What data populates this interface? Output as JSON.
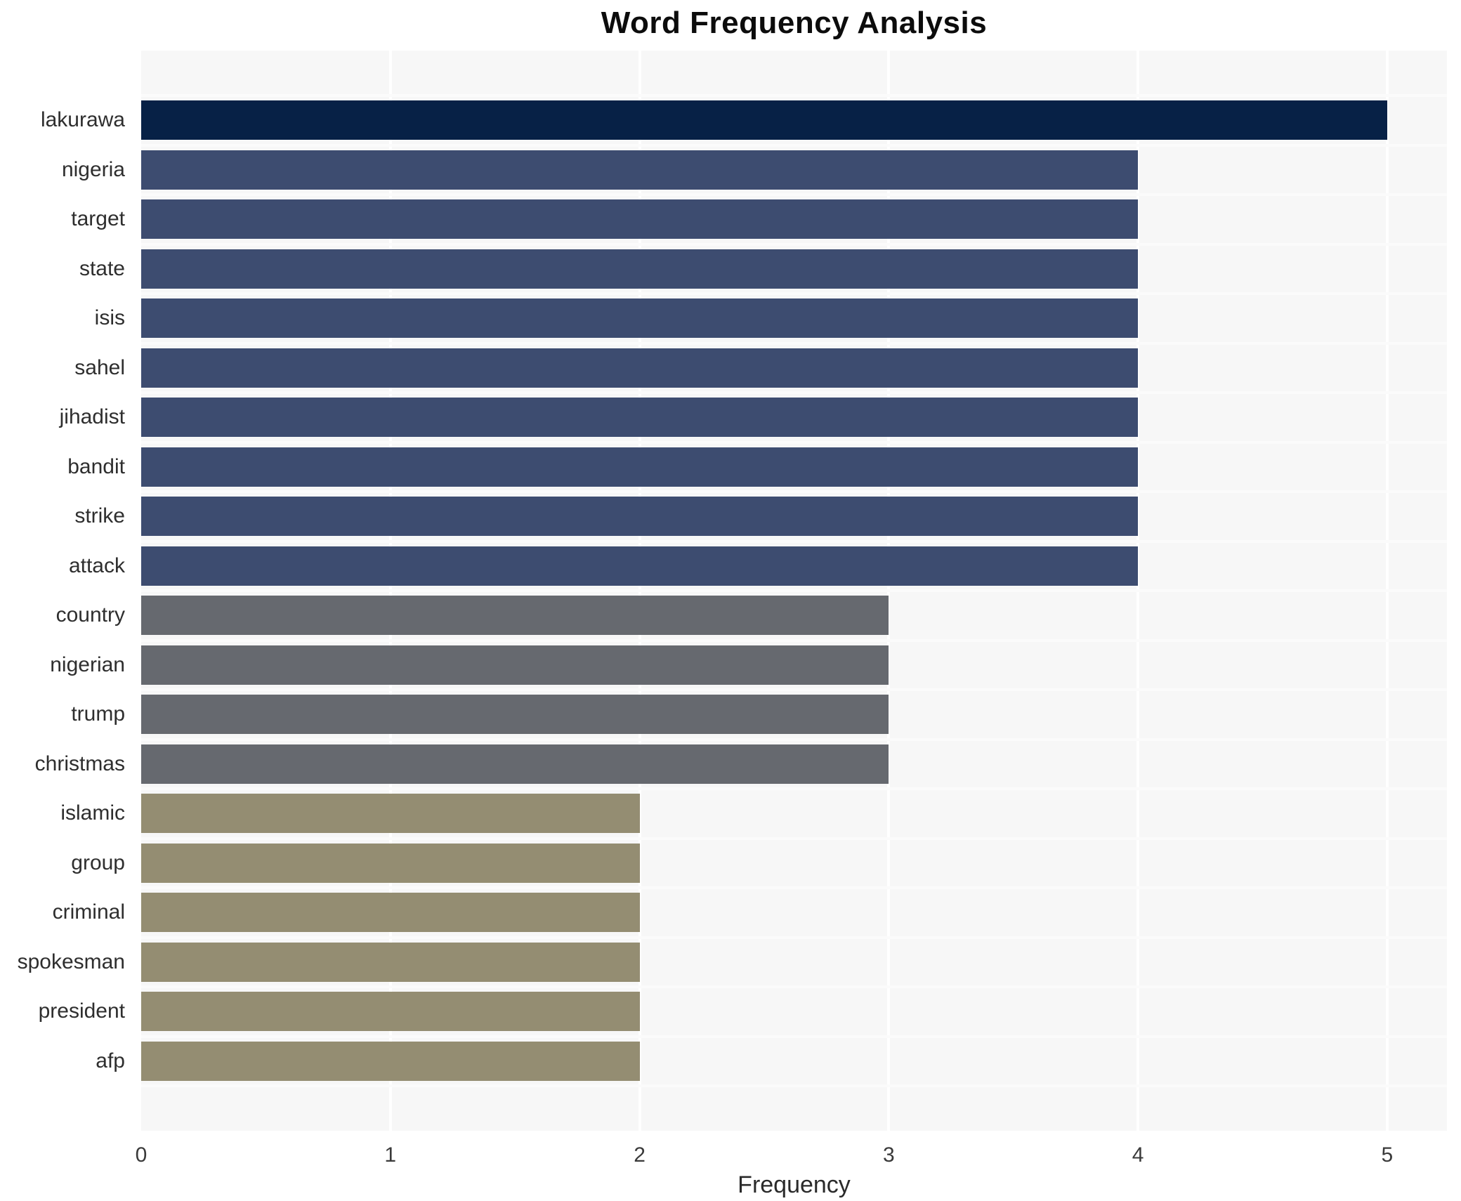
{
  "chart_data": {
    "type": "bar",
    "orientation": "horizontal",
    "title": "Word Frequency Analysis",
    "xlabel": "Frequency",
    "ylabel": "",
    "categories": [
      "lakurawa",
      "nigeria",
      "target",
      "state",
      "isis",
      "sahel",
      "jihadist",
      "bandit",
      "strike",
      "attack",
      "country",
      "nigerian",
      "trump",
      "christmas",
      "islamic",
      "group",
      "criminal",
      "spokesman",
      "president",
      "afp"
    ],
    "values": [
      5,
      4,
      4,
      4,
      4,
      4,
      4,
      4,
      4,
      4,
      3,
      3,
      3,
      3,
      2,
      2,
      2,
      2,
      2,
      2
    ],
    "bar_colors": [
      "#072146",
      "#3d4c70",
      "#3d4c70",
      "#3d4c70",
      "#3d4c70",
      "#3d4c70",
      "#3d4c70",
      "#3d4c70",
      "#3d4c70",
      "#3d4c70",
      "#66696f",
      "#66696f",
      "#66696f",
      "#66696f",
      "#948d72",
      "#948d72",
      "#948d72",
      "#948d72",
      "#948d72",
      "#948d72"
    ],
    "xticks": [
      0,
      1,
      2,
      3,
      4,
      5
    ],
    "xlim": [
      0,
      5.24
    ],
    "grid": true,
    "legend": false,
    "plot_bg": "#f7f7f7",
    "gridline_color": "#ffffff",
    "value_color_map": {
      "5": "#072146",
      "4": "#3d4c70",
      "3": "#66696f",
      "2": "#948d72"
    }
  }
}
